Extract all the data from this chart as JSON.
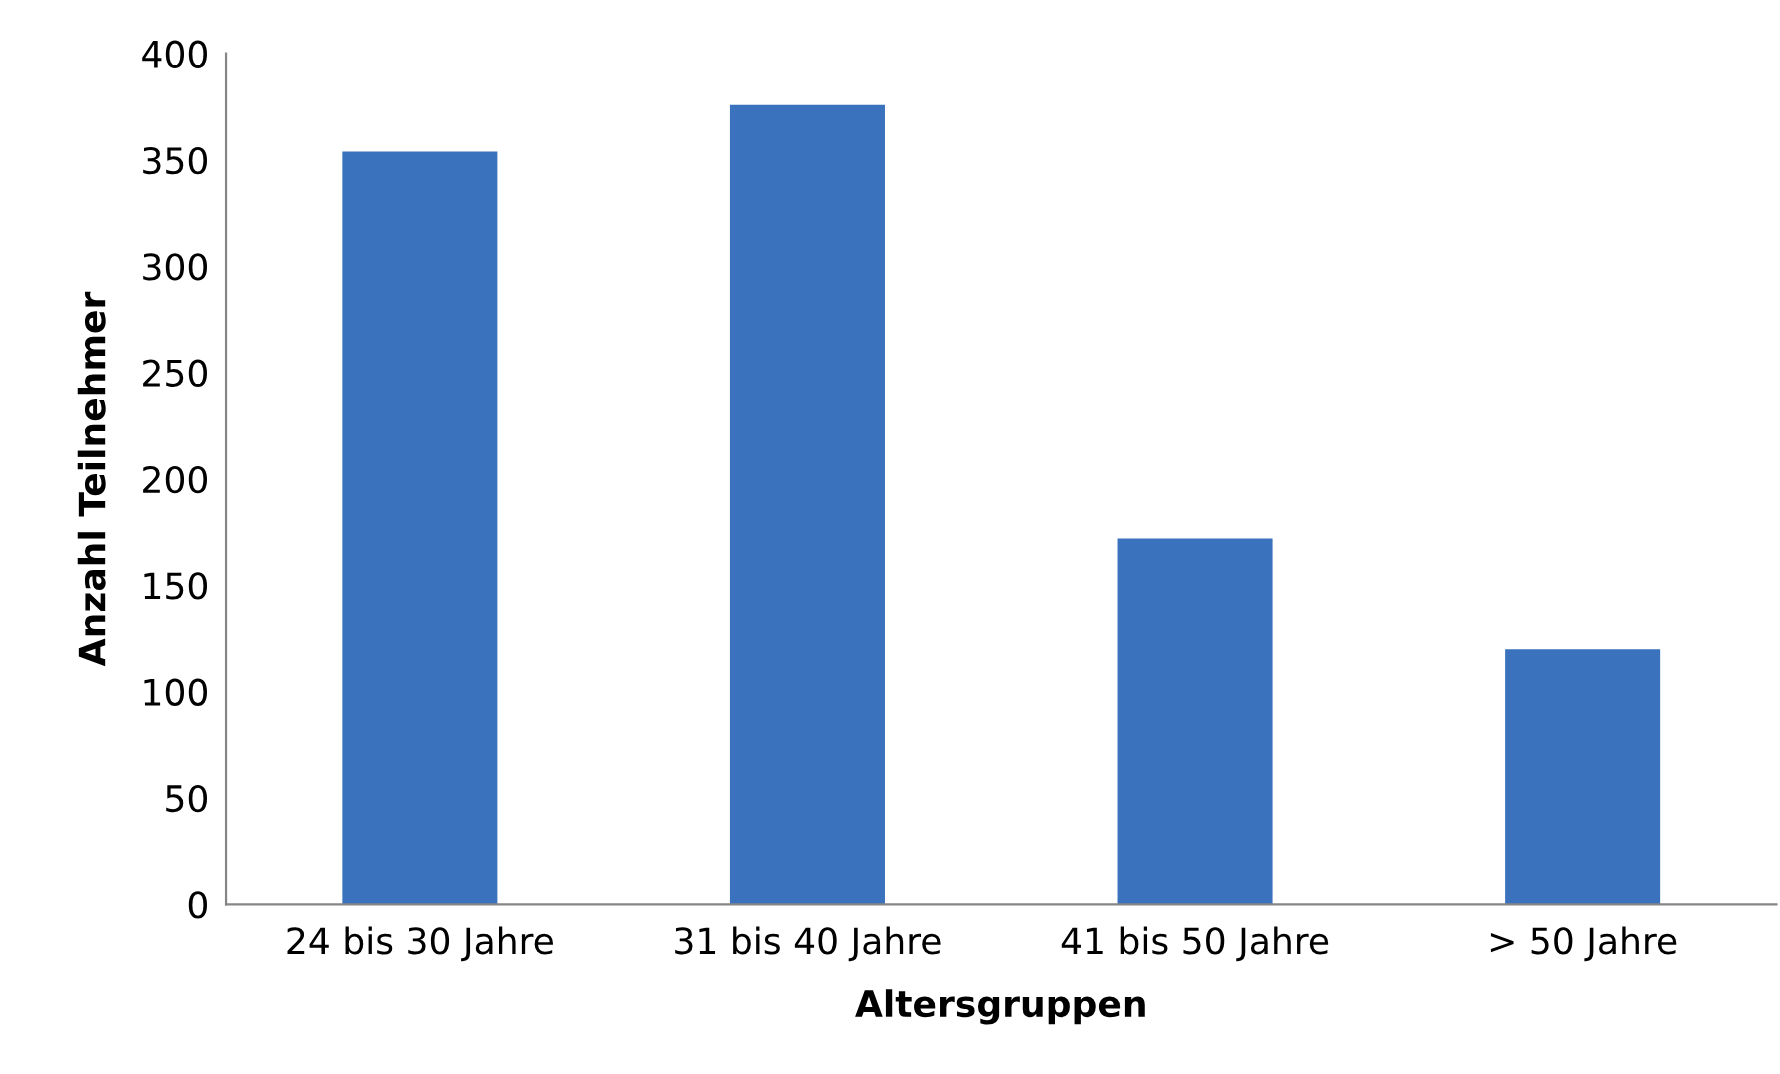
{
  "chart_data": {
    "type": "bar",
    "xlabel": "Altersgruppen",
    "ylabel": "Anzahl Teilnehmer",
    "categories": [
      "24 bis 30 Jahre",
      "31 bis 40 Jahre",
      "41 bis 50 Jahre",
      "> 50 Jahre"
    ],
    "values": [
      354,
      376,
      172,
      120
    ],
    "color": "#3a72bd",
    "ylim": [
      0,
      400
    ],
    "yticks": [
      0,
      50,
      100,
      150,
      200,
      250,
      300,
      350,
      400
    ],
    "grid": false,
    "legend": false
  }
}
